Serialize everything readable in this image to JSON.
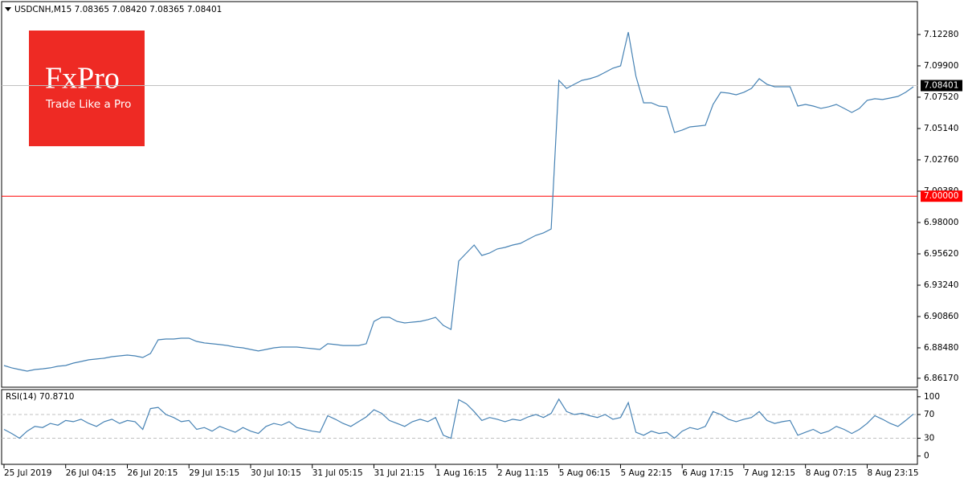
{
  "logo": {
    "brand": "FxPro",
    "tagline": "Trade Like a Pro",
    "color": "#ee2a24"
  },
  "chart_data": [
    {
      "type": "line",
      "title": "USDCNH,M15  7.08365 7.08420 7.08365 7.08401",
      "color": "#4682b4",
      "values": [
        6.8714,
        6.8696,
        6.8683,
        6.8671,
        6.8683,
        6.8689,
        6.8696,
        6.8708,
        6.8714,
        6.8732,
        6.8744,
        6.8757,
        6.8763,
        6.8769,
        6.8781,
        6.8787,
        6.8793,
        6.8787,
        6.8775,
        6.8805,
        6.8909,
        6.8915,
        6.8915,
        6.8921,
        6.8921,
        6.8897,
        6.8885,
        6.8879,
        6.8873,
        6.8866,
        6.8854,
        6.8848,
        6.8836,
        6.8824,
        6.8836,
        6.8848,
        6.8854,
        6.8854,
        6.8854,
        6.8848,
        6.8842,
        6.8836,
        6.8879,
        6.8873,
        6.8866,
        6.8866,
        6.8866,
        6.8879,
        6.9049,
        6.908,
        6.908,
        6.9049,
        6.9037,
        6.9043,
        6.9049,
        6.9062,
        6.908,
        6.9019,
        6.8988,
        6.9507,
        6.9568,
        6.9629,
        6.955,
        6.9568,
        6.9599,
        6.9611,
        6.9629,
        6.9641,
        6.9672,
        6.9702,
        6.9721,
        6.9751,
        7.088,
        7.0819,
        7.085,
        7.088,
        7.0892,
        7.0911,
        7.0941,
        7.0972,
        7.099,
        7.1246,
        7.0911,
        7.0709,
        7.0709,
        7.0685,
        7.0679,
        7.0484,
        7.0502,
        7.0526,
        7.0532,
        7.0538,
        7.0697,
        7.0789,
        7.0783,
        7.077,
        7.0789,
        7.0819,
        7.0892,
        7.085,
        7.0831,
        7.0831,
        7.0831,
        7.0685,
        7.0697,
        7.0685,
        7.0667,
        7.0679,
        7.0697,
        7.0667,
        7.0636,
        7.0667,
        7.0728,
        7.074,
        7.0734,
        7.0746,
        7.0758,
        7.0789,
        7.0831
      ],
      "ylim": [
        6.8549,
        7.1478
      ],
      "yticks": [
        {
          "value": 7.1228,
          "label": "7.12280"
        },
        {
          "value": 7.099,
          "label": "7.09900"
        },
        {
          "value": 7.0752,
          "label": "7.07520"
        },
        {
          "value": 7.0514,
          "label": "7.05140"
        },
        {
          "value": 7.0276,
          "label": "7.02760"
        },
        {
          "value": 7.0038,
          "label": "7.00380"
        },
        {
          "value": 6.98,
          "label": "6.98000"
        },
        {
          "value": 6.9562,
          "label": "6.95620"
        },
        {
          "value": 6.9324,
          "label": "6.93240"
        },
        {
          "value": 6.9086,
          "label": "6.90860"
        },
        {
          "value": 6.8848,
          "label": "6.88480"
        },
        {
          "value": 6.8617,
          "label": "6.86170"
        }
      ],
      "price_lines": [
        {
          "value": 7.08401,
          "line_color": "#c0c0c0",
          "color": "#000000"
        },
        {
          "value": 7,
          "label": "7.00000",
          "line_color": "#ff0000",
          "color": "#ff0000"
        }
      ]
    },
    {
      "type": "line",
      "title": "RSI(14) 70.8710",
      "color": "#4682b4",
      "values": [
        45,
        38,
        30,
        42,
        50,
        48,
        55,
        52,
        60,
        58,
        62,
        55,
        50,
        58,
        62,
        55,
        60,
        58,
        45,
        80,
        82,
        70,
        65,
        58,
        60,
        45,
        48,
        42,
        50,
        45,
        40,
        48,
        42,
        38,
        50,
        55,
        52,
        58,
        48,
        45,
        42,
        40,
        68,
        62,
        55,
        50,
        58,
        66,
        78,
        72,
        60,
        55,
        50,
        58,
        62,
        58,
        65,
        35,
        30,
        95,
        88,
        75,
        60,
        65,
        62,
        58,
        62,
        60,
        66,
        70,
        65,
        72,
        96,
        75,
        70,
        72,
        68,
        65,
        70,
        62,
        65,
        90,
        40,
        35,
        42,
        38,
        40,
        30,
        42,
        48,
        45,
        50,
        75,
        70,
        62,
        58,
        62,
        65,
        75,
        60,
        55,
        58,
        60,
        35,
        40,
        45,
        38,
        42,
        50,
        45,
        38,
        45,
        55,
        68,
        62,
        55,
        50,
        60,
        70.87
      ],
      "ylim": [
        -14,
        112
      ],
      "yticks": [
        100,
        70,
        30,
        0
      ],
      "levels": [
        70,
        30
      ],
      "categories": [
        "25 Jul 2019",
        null,
        null,
        null,
        null,
        null,
        null,
        null,
        "26 Jul 04:15",
        null,
        null,
        null,
        null,
        null,
        null,
        null,
        "26 Jul 20:15",
        null,
        null,
        null,
        null,
        null,
        null,
        null,
        "29 Jul 15:15",
        null,
        null,
        null,
        null,
        null,
        null,
        null,
        "30 Jul 10:15",
        null,
        null,
        null,
        null,
        null,
        null,
        null,
        "31 Jul 05:15",
        null,
        null,
        null,
        null,
        null,
        null,
        null,
        "31 Jul 21:15",
        null,
        null,
        null,
        null,
        null,
        null,
        null,
        "1 Aug 16:15",
        null,
        null,
        null,
        null,
        null,
        null,
        null,
        "2 Aug 11:15",
        null,
        null,
        null,
        null,
        null,
        null,
        null,
        "5 Aug 06:15",
        null,
        null,
        null,
        null,
        null,
        null,
        null,
        "5 Aug 22:15",
        null,
        null,
        null,
        null,
        null,
        null,
        null,
        "6 Aug 17:15",
        null,
        null,
        null,
        null,
        null,
        null,
        null,
        "7 Aug 12:15",
        null,
        null,
        null,
        null,
        null,
        null,
        null,
        "8 Aug 07:15",
        null,
        null,
        null,
        null,
        null,
        null,
        null,
        "8 Aug 23:15",
        null,
        null,
        null,
        null,
        null,
        null
      ]
    }
  ]
}
